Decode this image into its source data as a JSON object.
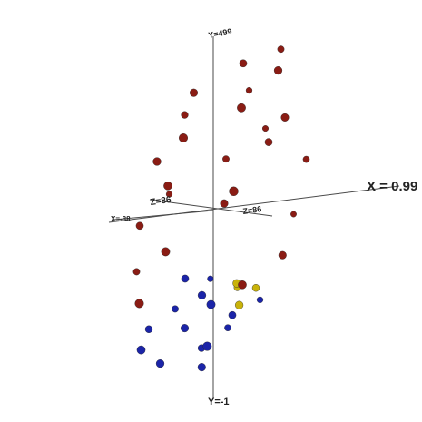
{
  "chart_data": {
    "type": "scatter",
    "projection": "3d",
    "title": "",
    "grid": false,
    "axis_labels": {
      "x_pos": "X = 0.99",
      "y_pos": "Y=499",
      "y_neg": "Y=-1",
      "z_pos": "Z=86",
      "z_neg": "Z=86",
      "x_neg": "X=-88"
    },
    "colors": {
      "red_sphere": "#8a1c14",
      "blue_sphere": "#1b24a8",
      "yellow_sphere": "#c9b30a",
      "axis": "#4a4a4a",
      "background": "#ffffff"
    },
    "series": [
      {
        "color_key": "red_sphere",
        "points": [
          [
            0.2,
            0.9,
            0.1
          ],
          [
            0.5,
            0.95,
            -0.2
          ],
          [
            0.7,
            0.85,
            0.3
          ],
          [
            -0.3,
            0.75,
            0.2
          ],
          [
            0.1,
            0.7,
            -0.4
          ],
          [
            0.4,
            0.65,
            0.5
          ],
          [
            -0.5,
            0.6,
            -0.1
          ],
          [
            0.8,
            0.55,
            0.2
          ],
          [
            -0.2,
            0.5,
            0.6
          ],
          [
            0.3,
            0.45,
            -0.5
          ],
          [
            0.6,
            0.4,
            0.1
          ],
          [
            -0.6,
            0.35,
            0.3
          ],
          [
            0.0,
            0.3,
            -0.2
          ],
          [
            0.9,
            0.25,
            -0.3
          ],
          [
            -0.4,
            0.2,
            0.4
          ],
          [
            0.5,
            0.15,
            0.7
          ],
          [
            -0.7,
            0.1,
            -0.4
          ],
          [
            0.2,
            0.05,
            0.2
          ],
          [
            -0.8,
            -0.05,
            0.1
          ],
          [
            0.7,
            -0.1,
            -0.6
          ],
          [
            -0.3,
            -0.2,
            0.5
          ],
          [
            0.95,
            -0.3,
            0.2
          ],
          [
            -0.9,
            -0.35,
            -0.2
          ],
          [
            0.6,
            -0.45,
            0.4
          ],
          [
            -0.5,
            -0.5,
            0.6
          ]
        ]
      },
      {
        "color_key": "blue_sphere",
        "points": [
          [
            -0.2,
            -0.4,
            0.1
          ],
          [
            0.1,
            -0.5,
            0.3
          ],
          [
            -0.4,
            -0.6,
            -0.2
          ],
          [
            0.3,
            -0.55,
            0.5
          ],
          [
            -0.1,
            -0.7,
            0.2
          ],
          [
            0.2,
            -0.75,
            -0.3
          ],
          [
            -0.5,
            -0.8,
            0.4
          ],
          [
            0.4,
            -0.65,
            0.1
          ],
          [
            0.0,
            -0.85,
            -0.1
          ],
          [
            -0.3,
            -0.9,
            0.3
          ],
          [
            0.5,
            -0.6,
            -0.4
          ],
          [
            -0.6,
            -0.7,
            0.0
          ],
          [
            0.15,
            -0.95,
            0.2
          ],
          [
            -0.15,
            -0.45,
            -0.5
          ],
          [
            0.35,
            -0.8,
            0.6
          ]
        ]
      },
      {
        "color_key": "yellow_sphere",
        "points": [
          [
            0.45,
            -0.45,
            0.2
          ],
          [
            0.6,
            -0.5,
            0.0
          ],
          [
            0.3,
            -0.5,
            -0.2
          ],
          [
            0.55,
            -0.58,
            0.3
          ]
        ]
      }
    ]
  }
}
